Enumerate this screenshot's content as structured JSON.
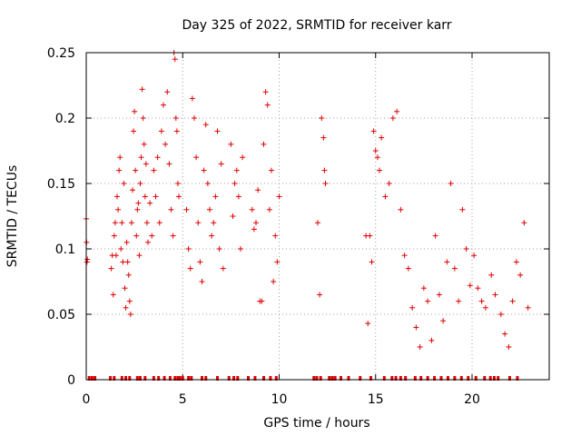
{
  "chart_data": {
    "type": "scatter",
    "title": "Day 325 of 2022, SRMTID for receiver karr",
    "xlabel": "GPS time / hours",
    "ylabel": "SRMTID / TECUs",
    "xlim": [
      0,
      24
    ],
    "ylim": [
      0,
      0.25
    ],
    "x_ticks": [
      0,
      5,
      10,
      15,
      20
    ],
    "x_tick_labels": [
      "0",
      "5",
      "10",
      "15",
      "20"
    ],
    "y_ticks": [
      0,
      0.05,
      0.1,
      0.15,
      0.2,
      0.25
    ],
    "y_tick_labels": [
      "0",
      "0.05",
      "0.1",
      "0.15",
      "0.2",
      "0.25"
    ],
    "grid": true,
    "marker": "plus",
    "color": "#e00000",
    "series": [
      {
        "name": "SRMTID",
        "x": [
          0.0,
          0.02,
          0.04,
          0.06,
          1.3,
          1.35,
          1.4,
          1.45,
          1.5,
          1.55,
          1.6,
          1.65,
          1.7,
          1.75,
          1.8,
          1.85,
          1.9,
          1.95,
          2.0,
          2.05,
          2.1,
          2.15,
          2.2,
          2.25,
          2.3,
          2.35,
          2.4,
          2.45,
          2.5,
          2.55,
          2.6,
          2.65,
          2.7,
          2.75,
          2.8,
          2.85,
          2.9,
          2.95,
          3.0,
          3.05,
          3.1,
          3.15,
          3.2,
          3.3,
          3.4,
          3.5,
          3.6,
          3.7,
          3.8,
          3.9,
          4.0,
          4.1,
          4.2,
          4.3,
          4.4,
          4.5,
          4.55,
          4.6,
          4.65,
          4.7,
          4.75,
          4.8,
          5.2,
          5.3,
          5.4,
          5.5,
          5.6,
          5.7,
          5.8,
          5.9,
          6.0,
          6.1,
          6.2,
          6.3,
          6.4,
          6.5,
          6.6,
          6.7,
          6.8,
          6.9,
          7.0,
          7.1,
          7.5,
          7.6,
          7.7,
          7.8,
          7.9,
          8.0,
          8.1,
          8.6,
          8.7,
          8.8,
          8.9,
          9.0,
          9.1,
          9.2,
          9.3,
          9.4,
          9.5,
          9.6,
          9.7,
          9.8,
          9.9,
          10.0,
          12.0,
          12.1,
          12.2,
          12.3,
          12.35,
          12.4,
          14.5,
          14.6,
          14.7,
          14.8,
          14.9,
          15.0,
          15.1,
          15.2,
          15.3,
          15.5,
          15.7,
          15.9,
          16.1,
          16.3,
          16.5,
          16.7,
          16.9,
          17.1,
          17.3,
          17.5,
          17.7,
          17.9,
          18.1,
          18.3,
          18.5,
          18.7,
          18.9,
          19.1,
          19.3,
          19.5,
          19.7,
          19.9,
          20.1,
          20.3,
          20.5,
          20.7,
          21.0,
          21.2,
          21.5,
          21.7,
          21.9,
          22.1,
          22.3,
          22.5,
          22.7,
          22.9
        ],
        "y": [
          0.123,
          0.105,
          0.09,
          0.092,
          0.085,
          0.095,
          0.065,
          0.11,
          0.12,
          0.095,
          0.14,
          0.13,
          0.16,
          0.17,
          0.1,
          0.12,
          0.09,
          0.15,
          0.07,
          0.055,
          0.105,
          0.09,
          0.08,
          0.06,
          0.05,
          0.12,
          0.145,
          0.19,
          0.205,
          0.16,
          0.11,
          0.13,
          0.135,
          0.095,
          0.15,
          0.17,
          0.222,
          0.2,
          0.18,
          0.14,
          0.165,
          0.12,
          0.105,
          0.135,
          0.11,
          0.16,
          0.14,
          0.17,
          0.12,
          0.19,
          0.21,
          0.18,
          0.22,
          0.165,
          0.13,
          0.11,
          0.25,
          0.245,
          0.2,
          0.19,
          0.15,
          0.14,
          0.13,
          0.1,
          0.085,
          0.215,
          0.2,
          0.17,
          0.12,
          0.09,
          0.075,
          0.16,
          0.195,
          0.15,
          0.13,
          0.11,
          0.12,
          0.14,
          0.19,
          0.1,
          0.165,
          0.085,
          0.18,
          0.125,
          0.15,
          0.16,
          0.14,
          0.1,
          0.17,
          0.13,
          0.115,
          0.12,
          0.145,
          0.06,
          0.06,
          0.18,
          0.22,
          0.21,
          0.13,
          0.16,
          0.075,
          0.11,
          0.09,
          0.14,
          0.12,
          0.065,
          0.2,
          0.185,
          0.16,
          0.15,
          0.11,
          0.043,
          0.11,
          0.09,
          0.19,
          0.175,
          0.17,
          0.16,
          0.185,
          0.14,
          0.15,
          0.2,
          0.205,
          0.13,
          0.095,
          0.085,
          0.055,
          0.04,
          0.025,
          0.07,
          0.06,
          0.03,
          0.11,
          0.065,
          0.045,
          0.09,
          0.15,
          0.085,
          0.06,
          0.13,
          0.1,
          0.072,
          0.095,
          0.07,
          0.06,
          0.055,
          0.08,
          0.065,
          0.05,
          0.035,
          0.025,
          0.06,
          0.09,
          0.08,
          0.12,
          0.055
        ]
      }
    ],
    "zero_markers_x": [
      0.15,
      0.3,
      0.45,
      1.25,
      1.45,
      1.85,
      2.05,
      2.25,
      2.65,
      2.8,
      3.05,
      3.5,
      3.75,
      4.05,
      4.35,
      4.6,
      4.75,
      4.85,
      5.0,
      5.3,
      5.45,
      6.0,
      6.2,
      6.8,
      7.4,
      7.65,
      7.85,
      8.4,
      8.75,
      9.2,
      9.55,
      9.85,
      11.8,
      11.95,
      12.15,
      12.6,
      12.75,
      12.9,
      13.2,
      13.6,
      14.2,
      14.75,
      15.45,
      15.85,
      16.05,
      16.3,
      16.55,
      17.05,
      17.35,
      17.7,
      18.05,
      18.4,
      18.75,
      19.1,
      19.45,
      19.8,
      20.2,
      20.65,
      20.95,
      21.15,
      21.35,
      21.95,
      22.35
    ]
  }
}
